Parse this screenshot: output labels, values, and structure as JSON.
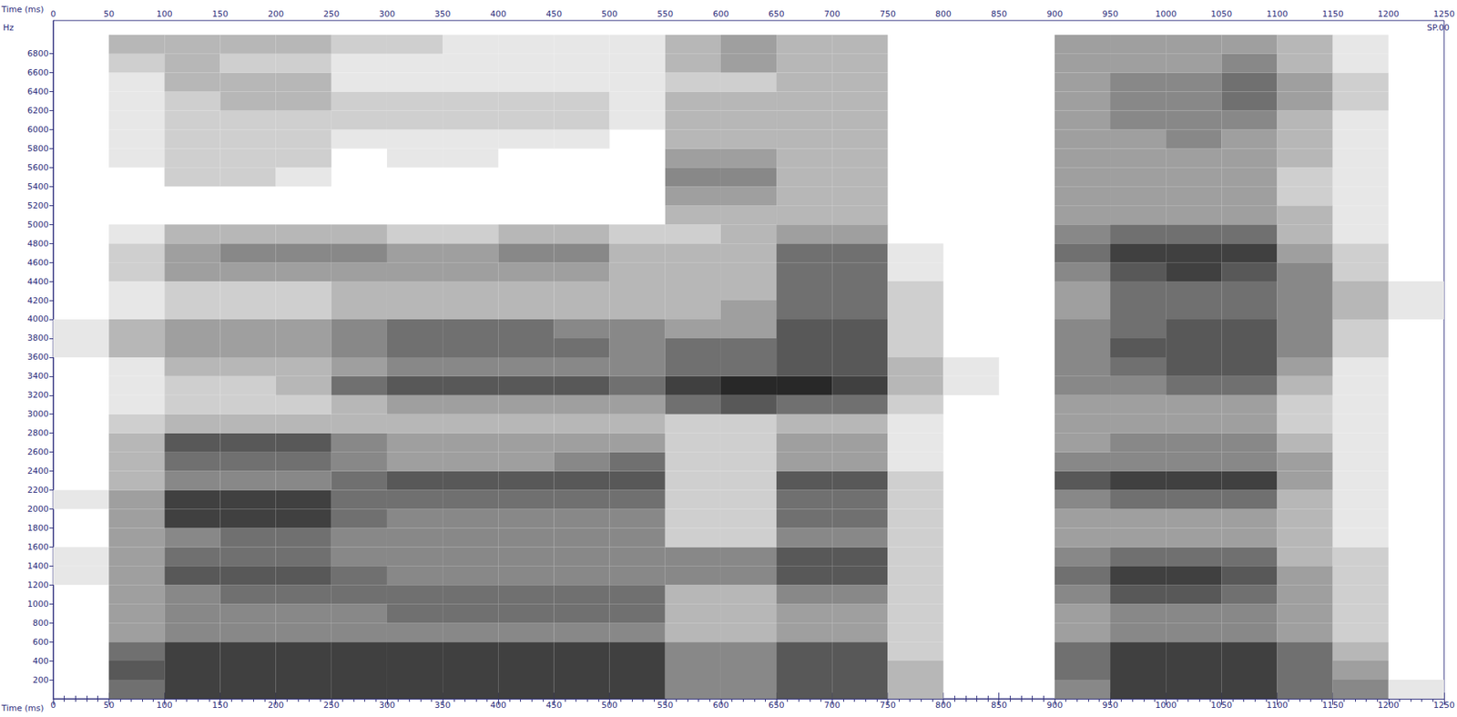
{
  "chart_data": {
    "type": "heatmap",
    "x_label": "Time (ms)",
    "y_label": "Hz",
    "annotations": [
      "SP.00"
    ],
    "grid": false,
    "xlim": [
      0,
      1250
    ],
    "xticks": [
      0,
      50,
      100,
      150,
      200,
      250,
      300,
      350,
      400,
      450,
      500,
      550,
      600,
      650,
      700,
      750,
      800,
      850,
      900,
      950,
      1000,
      1050,
      1100,
      1150,
      1200,
      1250
    ],
    "ylim": [
      0,
      7150
    ],
    "yticks": [
      200,
      400,
      600,
      800,
      1000,
      1200,
      1400,
      1600,
      1800,
      2000,
      2200,
      2400,
      2600,
      2800,
      3000,
      3200,
      3400,
      3600,
      3800,
      4000,
      4200,
      4400,
      4600,
      4800,
      5000,
      5200,
      5400,
      5600,
      5800,
      6000,
      6200,
      6400,
      6600,
      6800
    ],
    "x_bins": [
      0,
      50,
      100,
      150,
      200,
      250,
      300,
      350,
      400,
      450,
      500,
      550,
      600,
      650,
      700,
      750,
      800,
      850,
      900,
      950,
      1000,
      1050,
      1100,
      1150,
      1200,
      1250
    ],
    "y_bins": [
      0,
      200,
      400,
      600,
      800,
      1000,
      1200,
      1400,
      1600,
      1800,
      2000,
      2200,
      2400,
      2600,
      2800,
      3000,
      3200,
      3400,
      3600,
      3800,
      4000,
      4200,
      4400,
      4600,
      4800,
      5000,
      5200,
      5400,
      5600,
      5800,
      6000,
      6200,
      6400,
      6600,
      6800,
      7000
    ],
    "cells": [
      [
        0,
        6,
        8,
        8,
        8,
        8,
        8,
        8,
        8,
        8,
        8,
        5,
        5,
        7,
        7,
        3,
        0,
        0,
        5,
        8,
        8,
        8,
        6,
        5,
        1
      ],
      [
        0,
        7,
        8,
        8,
        8,
        8,
        8,
        8,
        8,
        8,
        8,
        5,
        5,
        7,
        7,
        3,
        0,
        0,
        6,
        8,
        8,
        8,
        6,
        4,
        0
      ],
      [
        0,
        6,
        8,
        8,
        8,
        8,
        8,
        8,
        8,
        8,
        8,
        5,
        5,
        7,
        7,
        2,
        0,
        0,
        6,
        8,
        8,
        8,
        6,
        3,
        0
      ],
      [
        0,
        4,
        5,
        5,
        5,
        5,
        5,
        5,
        5,
        5,
        5,
        3,
        3,
        4,
        4,
        2,
        0,
        0,
        4,
        5,
        5,
        5,
        4,
        2,
        0
      ],
      [
        0,
        4,
        5,
        5,
        5,
        5,
        6,
        6,
        6,
        6,
        6,
        3,
        3,
        4,
        4,
        2,
        0,
        0,
        4,
        5,
        5,
        5,
        4,
        2,
        0
      ],
      [
        0,
        4,
        5,
        6,
        6,
        6,
        6,
        6,
        6,
        6,
        6,
        3,
        3,
        5,
        5,
        2,
        0,
        0,
        5,
        7,
        7,
        6,
        4,
        2,
        0
      ],
      [
        1,
        4,
        7,
        7,
        7,
        6,
        5,
        5,
        5,
        5,
        5,
        5,
        5,
        7,
        7,
        2,
        0,
        0,
        6,
        8,
        8,
        7,
        4,
        2,
        0
      ],
      [
        1,
        4,
        6,
        6,
        6,
        5,
        5,
        5,
        5,
        5,
        5,
        5,
        5,
        7,
        7,
        2,
        0,
        0,
        5,
        6,
        6,
        6,
        3,
        2,
        0
      ],
      [
        0,
        4,
        5,
        6,
        6,
        5,
        5,
        5,
        5,
        5,
        5,
        2,
        2,
        5,
        5,
        2,
        0,
        0,
        4,
        4,
        4,
        4,
        3,
        1,
        0
      ],
      [
        0,
        4,
        8,
        8,
        8,
        6,
        5,
        5,
        5,
        5,
        5,
        2,
        2,
        6,
        6,
        2,
        0,
        0,
        4,
        4,
        4,
        4,
        3,
        1,
        0
      ],
      [
        1,
        4,
        8,
        8,
        8,
        6,
        6,
        6,
        6,
        6,
        6,
        2,
        2,
        6,
        6,
        2,
        0,
        0,
        5,
        6,
        6,
        6,
        3,
        1,
        0
      ],
      [
        0,
        3,
        5,
        5,
        5,
        6,
        7,
        7,
        7,
        7,
        7,
        2,
        2,
        7,
        7,
        2,
        0,
        0,
        7,
        8,
        8,
        8,
        4,
        1,
        0
      ],
      [
        0,
        3,
        6,
        6,
        6,
        5,
        4,
        4,
        4,
        5,
        6,
        2,
        2,
        4,
        4,
        1,
        0,
        0,
        5,
        5,
        5,
        5,
        4,
        1,
        0
      ],
      [
        0,
        3,
        7,
        7,
        7,
        5,
        4,
        4,
        4,
        4,
        4,
        2,
        2,
        4,
        4,
        1,
        0,
        0,
        4,
        5,
        5,
        5,
        3,
        1,
        0
      ],
      [
        0,
        2,
        3,
        3,
        3,
        3,
        3,
        3,
        3,
        3,
        3,
        2,
        2,
        3,
        3,
        1,
        0,
        0,
        4,
        4,
        4,
        4,
        2,
        1,
        0
      ],
      [
        0,
        1,
        2,
        2,
        2,
        3,
        4,
        4,
        4,
        4,
        4,
        6,
        7,
        6,
        6,
        2,
        0,
        0,
        4,
        4,
        4,
        4,
        2,
        1,
        0
      ],
      [
        0,
        1,
        2,
        2,
        3,
        6,
        7,
        7,
        7,
        7,
        6,
        8,
        9,
        9,
        8,
        3,
        1,
        0,
        5,
        5,
        6,
        6,
        3,
        1,
        0
      ],
      [
        0,
        1,
        3,
        3,
        3,
        4,
        5,
        5,
        5,
        5,
        5,
        6,
        6,
        7,
        7,
        3,
        1,
        0,
        5,
        6,
        7,
        7,
        4,
        1,
        0
      ],
      [
        1,
        3,
        4,
        4,
        4,
        5,
        6,
        6,
        6,
        6,
        5,
        6,
        6,
        7,
        7,
        2,
        0,
        0,
        5,
        7,
        7,
        7,
        5,
        2,
        0
      ],
      [
        1,
        3,
        4,
        4,
        4,
        5,
        6,
        6,
        6,
        5,
        5,
        4,
        4,
        7,
        7,
        2,
        0,
        0,
        5,
        6,
        7,
        7,
        5,
        2,
        0
      ],
      [
        0,
        1,
        2,
        2,
        2,
        3,
        3,
        3,
        3,
        3,
        3,
        3,
        4,
        6,
        6,
        2,
        0,
        0,
        4,
        6,
        6,
        6,
        5,
        3,
        1
      ],
      [
        0,
        1,
        2,
        2,
        2,
        3,
        3,
        3,
        3,
        3,
        3,
        3,
        3,
        6,
        6,
        2,
        0,
        0,
        4,
        6,
        6,
        6,
        5,
        3,
        1
      ],
      [
        0,
        2,
        4,
        4,
        4,
        4,
        4,
        4,
        4,
        4,
        3,
        3,
        3,
        6,
        6,
        1,
        0,
        0,
        5,
        7,
        8,
        7,
        5,
        2,
        0
      ],
      [
        0,
        2,
        4,
        5,
        5,
        5,
        4,
        4,
        5,
        5,
        3,
        3,
        3,
        6,
        6,
        1,
        0,
        0,
        6,
        8,
        8,
        8,
        4,
        2,
        0
      ],
      [
        0,
        1,
        3,
        3,
        3,
        3,
        2,
        2,
        3,
        3,
        2,
        2,
        3,
        4,
        4,
        0,
        0,
        0,
        5,
        6,
        6,
        6,
        3,
        1,
        0
      ],
      [
        0,
        0,
        0,
        0,
        0,
        0,
        0,
        0,
        0,
        0,
        0,
        3,
        3,
        3,
        3,
        0,
        0,
        0,
        4,
        4,
        4,
        4,
        3,
        1,
        0
      ],
      [
        0,
        0,
        0,
        0,
        0,
        0,
        0,
        0,
        0,
        0,
        0,
        4,
        4,
        3,
        3,
        0,
        0,
        0,
        4,
        4,
        4,
        4,
        2,
        1,
        0
      ],
      [
        0,
        0,
        2,
        2,
        1,
        0,
        0,
        0,
        0,
        0,
        0,
        5,
        5,
        3,
        3,
        0,
        0,
        0,
        4,
        4,
        4,
        4,
        2,
        1,
        0
      ],
      [
        0,
        1,
        2,
        2,
        2,
        0,
        1,
        1,
        0,
        0,
        0,
        4,
        4,
        3,
        3,
        0,
        0,
        0,
        4,
        4,
        4,
        4,
        3,
        1,
        0
      ],
      [
        0,
        1,
        2,
        2,
        2,
        1,
        1,
        1,
        1,
        1,
        0,
        3,
        3,
        3,
        3,
        0,
        0,
        0,
        4,
        4,
        5,
        4,
        3,
        1,
        0
      ],
      [
        0,
        1,
        2,
        2,
        2,
        2,
        2,
        2,
        2,
        2,
        1,
        3,
        3,
        3,
        3,
        0,
        0,
        0,
        4,
        5,
        5,
        5,
        3,
        1,
        0
      ],
      [
        0,
        1,
        2,
        3,
        3,
        2,
        2,
        2,
        2,
        2,
        1,
        3,
        3,
        3,
        3,
        0,
        0,
        0,
        4,
        5,
        5,
        6,
        4,
        2,
        0
      ],
      [
        0,
        1,
        3,
        3,
        3,
        1,
        1,
        1,
        1,
        1,
        1,
        2,
        2,
        3,
        3,
        0,
        0,
        0,
        4,
        5,
        5,
        6,
        4,
        2,
        0
      ],
      [
        0,
        2,
        3,
        2,
        2,
        1,
        1,
        1,
        1,
        1,
        1,
        3,
        4,
        3,
        3,
        0,
        0,
        0,
        4,
        4,
        4,
        5,
        3,
        1,
        0
      ],
      [
        0,
        3,
        3,
        3,
        3,
        2,
        2,
        1,
        1,
        1,
        1,
        3,
        4,
        3,
        3,
        0,
        0,
        0,
        4,
        4,
        4,
        4,
        3,
        1,
        0
      ]
    ]
  }
}
